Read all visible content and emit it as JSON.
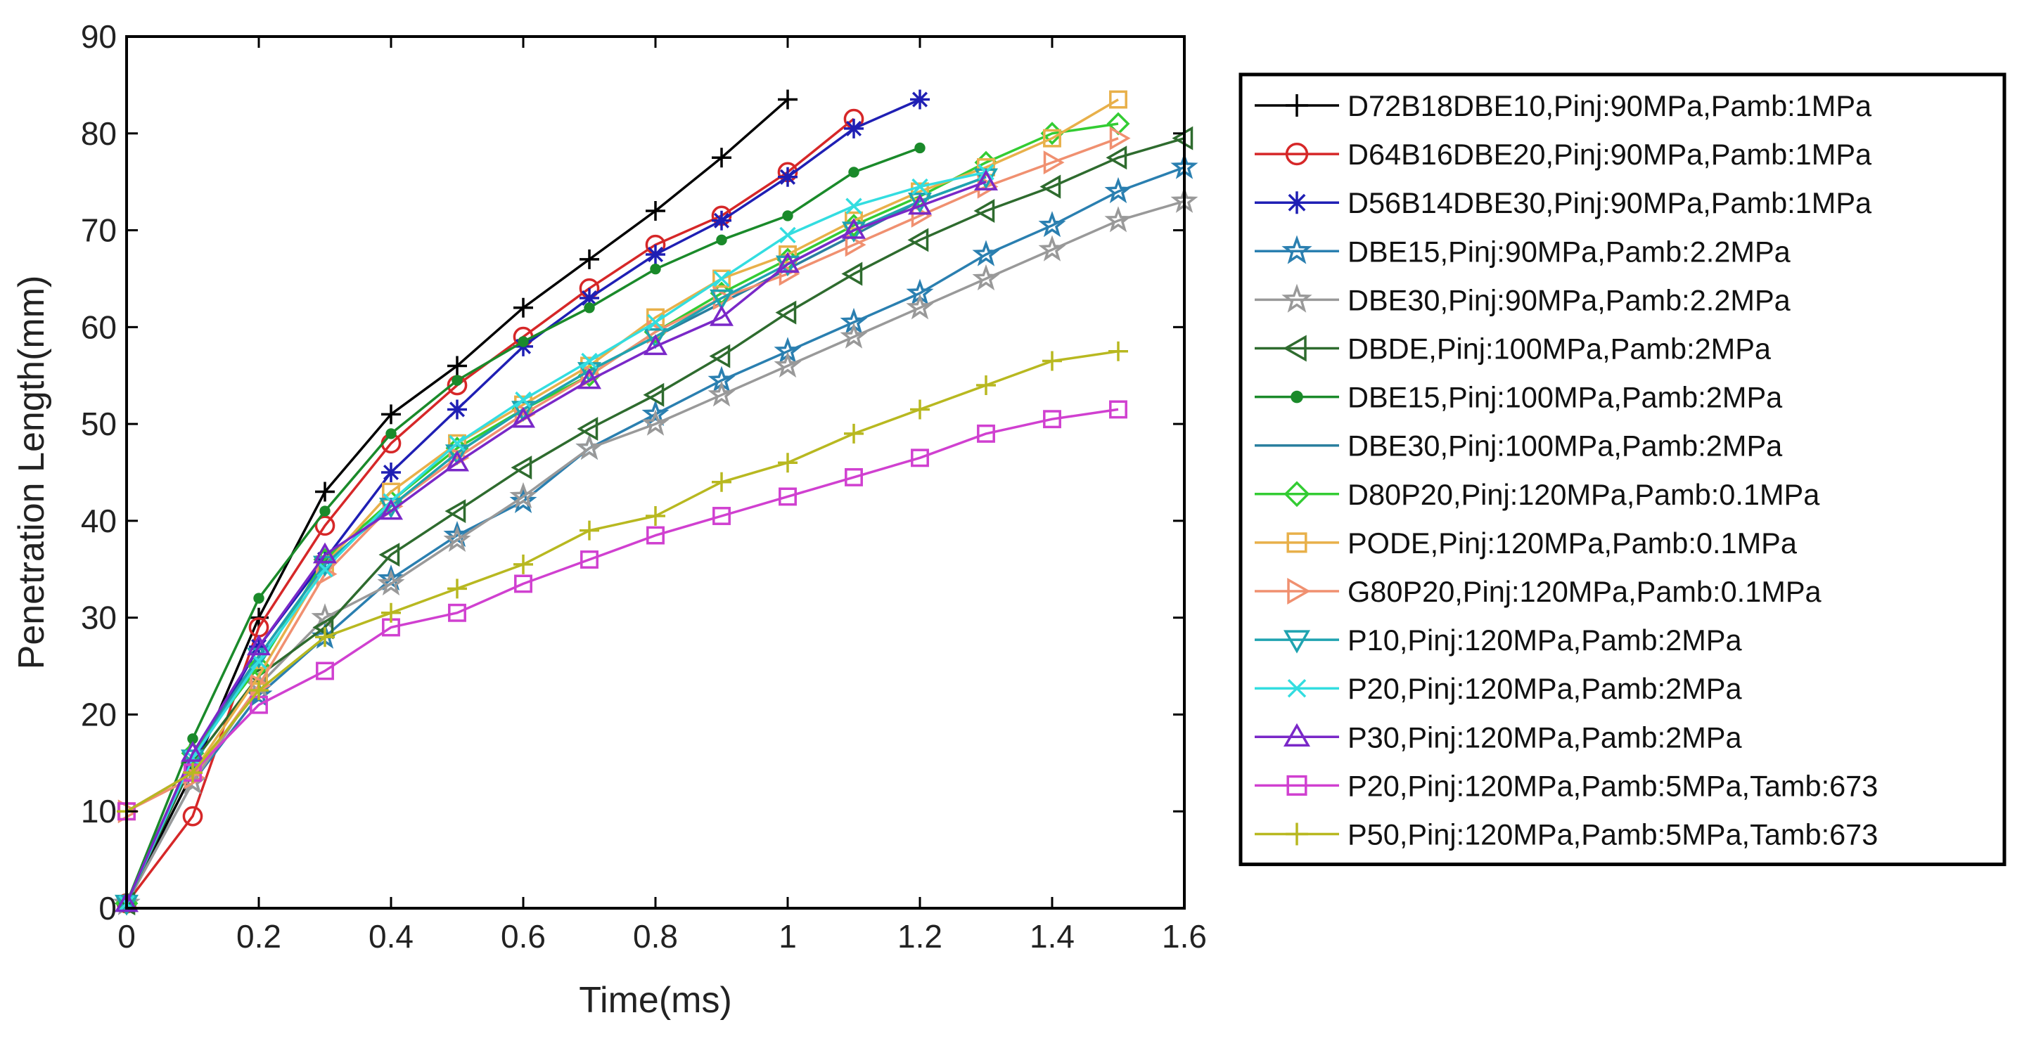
{
  "chart_data": {
    "type": "line",
    "title": "",
    "xlabel": "Time(ms)",
    "ylabel": "Penetration Length(mm)",
    "xlim": [
      0,
      1.6
    ],
    "ylim": [
      0,
      90
    ],
    "xticks": [
      0,
      0.2,
      0.4,
      0.6,
      0.8,
      1,
      1.2,
      1.4,
      1.6
    ],
    "xtick_labels": [
      "0",
      "0.2",
      "0.4",
      "0.6",
      "0.8",
      "1",
      "1.2",
      "1.4",
      "1.6"
    ],
    "yticks": [
      0,
      10,
      20,
      30,
      40,
      50,
      60,
      70,
      80,
      90
    ],
    "ytick_labels": [
      "0",
      "10",
      "20",
      "30",
      "40",
      "50",
      "60",
      "70",
      "80",
      "90"
    ],
    "grid": false,
    "legend_position": "outside-right",
    "series": [
      {
        "name": "D72B18DBE10,Pinj:90MPa,Pamb:1MPa",
        "color": "#000000",
        "marker": "plus",
        "x": [
          0,
          0.1,
          0.2,
          0.3,
          0.4,
          0.5,
          0.6,
          0.7,
          0.8,
          0.9,
          1.0
        ],
        "y": [
          0.5,
          14,
          30,
          43,
          51,
          56,
          62,
          67,
          72,
          77.5,
          83.5
        ]
      },
      {
        "name": "D64B16DBE20,Pinj:90MPa,Pamb:1MPa",
        "color": "#d62728",
        "marker": "circle",
        "x": [
          0,
          0.1,
          0.2,
          0.3,
          0.4,
          0.5,
          0.6,
          0.7,
          0.8,
          0.9,
          1.0,
          1.1
        ],
        "y": [
          0.5,
          9.5,
          29,
          39.5,
          48,
          54,
          59,
          64,
          68.5,
          71.5,
          76,
          81.5
        ]
      },
      {
        "name": "D56B14DBE30,Pinj:90MPa,Pamb:1MPa",
        "color": "#1f1fb4",
        "marker": "asterisk",
        "x": [
          0,
          0.1,
          0.2,
          0.3,
          0.4,
          0.5,
          0.6,
          0.7,
          0.8,
          0.9,
          1.0,
          1.1,
          1.2
        ],
        "y": [
          0.5,
          15,
          27,
          36,
          45,
          51.5,
          58,
          63,
          67.5,
          71,
          75.5,
          80.5,
          83.5
        ]
      },
      {
        "name": "DBE15,Pinj:90MPa,Pamb:2.2MPa",
        "color": "#2a7fb0",
        "marker": "star",
        "x": [
          0,
          0.1,
          0.2,
          0.3,
          0.4,
          0.5,
          0.6,
          0.7,
          0.8,
          0.9,
          1.0,
          1.1,
          1.2,
          1.3,
          1.4,
          1.5,
          1.6
        ],
        "y": [
          0.5,
          13,
          22,
          28,
          34,
          38.5,
          42,
          47.5,
          51,
          54.5,
          57.5,
          60.5,
          63.5,
          67.5,
          70.5,
          74,
          76.5
        ]
      },
      {
        "name": "DBE30,Pinj:90MPa,Pamb:2.2MPa",
        "color": "#999999",
        "marker": "star",
        "x": [
          0,
          0.1,
          0.2,
          0.3,
          0.4,
          0.5,
          0.6,
          0.7,
          0.8,
          0.9,
          1.0,
          1.1,
          1.2,
          1.3,
          1.4,
          1.5,
          1.6
        ],
        "y": [
          0.5,
          13,
          23,
          30,
          33.5,
          38,
          42.5,
          47.5,
          50,
          53,
          56,
          59,
          62,
          65,
          68,
          71,
          73
        ]
      },
      {
        "name": "DBDE,Pinj:100MPa,Pamb:2MPa",
        "color": "#2e6b2e",
        "marker": "triangle-left",
        "x": [
          0,
          0.1,
          0.2,
          0.3,
          0.4,
          0.5,
          0.6,
          0.7,
          0.8,
          0.9,
          1.0,
          1.1,
          1.2,
          1.3,
          1.4,
          1.5,
          1.6
        ],
        "y": [
          0.5,
          15,
          24,
          29,
          36.5,
          41,
          45.5,
          49.5,
          53,
          57,
          61.5,
          65.5,
          69,
          72,
          74.5,
          77.5,
          79.5
        ]
      },
      {
        "name": "DBE15,Pinj:100MPa,Pamb:2MPa",
        "color": "#1a8a2a",
        "marker": "dot",
        "x": [
          0,
          0.1,
          0.2,
          0.3,
          0.4,
          0.5,
          0.6,
          0.7,
          0.8,
          0.9,
          1.0,
          1.1,
          1.2
        ],
        "y": [
          0.5,
          17.5,
          32,
          41,
          49,
          54.5,
          58.5,
          62,
          66,
          69,
          71.5,
          76,
          78.5
        ]
      },
      {
        "name": "DBE30,Pinj:100MPa,Pamb:2MPa",
        "color": "#2a7f9f",
        "marker": "none",
        "x": [
          0,
          0.1,
          0.2,
          0.3,
          0.4,
          0.5,
          0.6,
          0.7,
          0.8,
          0.9,
          1.0,
          1.1,
          1.2,
          1.3
        ],
        "y": [
          0.5,
          16,
          26,
          35.5,
          41.5,
          47,
          51.5,
          55.5,
          59,
          62.5,
          66,
          69.5,
          73,
          75.5
        ]
      },
      {
        "name": "D80P20,Pinj:120MPa,Pamb:0.1MPa",
        "color": "#33cc33",
        "marker": "diamond",
        "x": [
          0,
          0.1,
          0.2,
          0.3,
          0.4,
          0.5,
          0.6,
          0.7,
          0.8,
          0.9,
          1.0,
          1.1,
          1.2,
          1.3,
          1.4,
          1.5
        ],
        "y": [
          0.5,
          16,
          25,
          36,
          42,
          47.5,
          51.5,
          55,
          59.5,
          63.5,
          67,
          70.5,
          73.5,
          77,
          80,
          81
        ]
      },
      {
        "name": "PODE,Pinj:120MPa,Pamb:0.1MPa",
        "color": "#e8b04a",
        "marker": "square",
        "x": [
          0,
          0.1,
          0.2,
          0.3,
          0.4,
          0.5,
          0.6,
          0.7,
          0.8,
          0.9,
          1.0,
          1.1,
          1.2,
          1.3,
          1.4,
          1.5
        ],
        "y": [
          10,
          14,
          24,
          35.5,
          43,
          48,
          52,
          56,
          61,
          65,
          67.5,
          71,
          74,
          76.5,
          79.5,
          83.5
        ]
      },
      {
        "name": "G80P20,Pinj:120MPa,Pamb:0.1MPa",
        "color": "#f09070",
        "marker": "triangle-right",
        "x": [
          0,
          0.1,
          0.2,
          0.3,
          0.4,
          0.5,
          0.6,
          0.7,
          0.8,
          0.9,
          1.0,
          1.1,
          1.2,
          1.3,
          1.4,
          1.5
        ],
        "y": [
          10,
          13.5,
          23,
          34.5,
          41.5,
          46.5,
          51,
          55,
          59.5,
          63,
          65.5,
          68.5,
          71.5,
          74.5,
          77,
          79.5
        ]
      },
      {
        "name": "P10,Pinj:120MPa,Pamb:2MPa",
        "color": "#1fa3b0",
        "marker": "triangle-down",
        "x": [
          0,
          0.1,
          0.2,
          0.3,
          0.4,
          0.5,
          0.6,
          0.7,
          0.8,
          0.9,
          1.0,
          1.1,
          1.2,
          1.3
        ],
        "y": [
          0.5,
          15.5,
          26,
          35.5,
          41.5,
          47,
          51.5,
          55.5,
          59,
          63,
          66.5,
          70,
          73,
          75.5
        ]
      },
      {
        "name": "P20,Pinj:120MPa,Pamb:2MPa",
        "color": "#33dde0",
        "marker": "cross",
        "x": [
          0,
          0.1,
          0.2,
          0.3,
          0.4,
          0.5,
          0.6,
          0.7,
          0.8,
          0.9,
          1.0,
          1.1,
          1.2,
          1.3
        ],
        "y": [
          0.5,
          15.5,
          25.5,
          35,
          42,
          48,
          52.5,
          56.5,
          60.5,
          65,
          69.5,
          72.5,
          74.5,
          76
        ]
      },
      {
        "name": "P30,Pinj:120MPa,Pamb:2MPa",
        "color": "#7a28c8",
        "marker": "triangle-up",
        "x": [
          0,
          0.1,
          0.2,
          0.3,
          0.4,
          0.5,
          0.6,
          0.7,
          0.8,
          0.9,
          1.0,
          1.1,
          1.2,
          1.3
        ],
        "y": [
          0.5,
          16,
          27,
          36.5,
          41,
          46,
          50.5,
          54.5,
          58,
          61,
          66.5,
          70,
          72.5,
          75
        ]
      },
      {
        "name": "P20,Pinj:120MPa,Pamb:5MPa,Tamb:673",
        "color": "#d040d0",
        "marker": "square",
        "x": [
          0,
          0.1,
          0.2,
          0.3,
          0.4,
          0.5,
          0.6,
          0.7,
          0.8,
          0.9,
          1.0,
          1.1,
          1.2,
          1.3,
          1.4,
          1.5
        ],
        "y": [
          10,
          14,
          21,
          24.5,
          29,
          30.5,
          33.5,
          36,
          38.5,
          40.5,
          42.5,
          44.5,
          46.5,
          49,
          50.5,
          51.5
        ]
      },
      {
        "name": "P50,Pinj:120MPa,Pamb:5MPa,Tamb:673",
        "color": "#b8b820",
        "marker": "plus",
        "x": [
          0,
          0.1,
          0.2,
          0.3,
          0.4,
          0.5,
          0.6,
          0.7,
          0.8,
          0.9,
          1.0,
          1.1,
          1.2,
          1.3,
          1.4,
          1.5
        ],
        "y": [
          10,
          14,
          22.5,
          28,
          30.5,
          33,
          35.5,
          39,
          40.5,
          44,
          46,
          49,
          51.5,
          54,
          56.5,
          57.5
        ]
      }
    ]
  }
}
